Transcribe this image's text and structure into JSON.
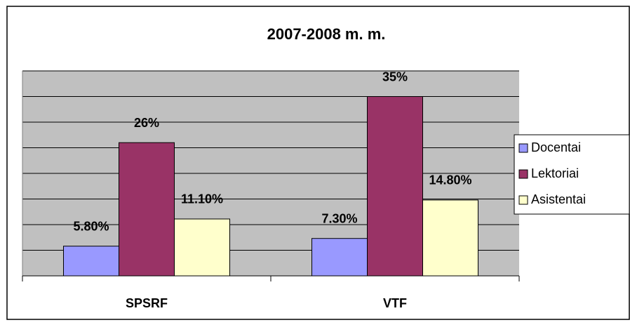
{
  "chart_data": {
    "type": "bar",
    "title": "2007-2008 m. m.",
    "categories": [
      "SPSRF",
      "VTF"
    ],
    "series": [
      {
        "name": "Docentai",
        "color": "#9999ff",
        "values": [
          5.8,
          7.3
        ],
        "value_labels": [
          "5.80%",
          "7.30%"
        ]
      },
      {
        "name": "Lektoriai",
        "color": "#993366",
        "values": [
          26,
          35
        ],
        "value_labels": [
          "26%",
          "35%"
        ]
      },
      {
        "name": "Asistentai",
        "color": "#ffffcc",
        "values": [
          11.1,
          14.8
        ],
        "value_labels": [
          "11.10%",
          "14.80%"
        ]
      }
    ],
    "ylim": [
      0,
      40
    ],
    "yticks": [
      0,
      5,
      10,
      15,
      20,
      25,
      30,
      35,
      40
    ],
    "grid": true,
    "legend": "right"
  }
}
